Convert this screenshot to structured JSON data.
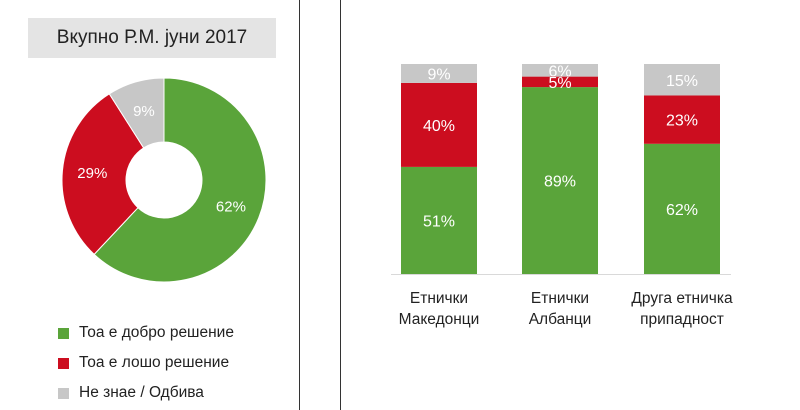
{
  "colors": {
    "good": "#5aa43a",
    "bad": "#cc0d1f",
    "unknown": "#c7c7c7"
  },
  "legend": [
    {
      "label": "Тоа е добро решение",
      "color": "#5aa43a"
    },
    {
      "label": "Тоа е лошо решение",
      "color": "#cc0d1f"
    },
    {
      "label": "Не знае / Одбива",
      "color": "#c7c7c7"
    }
  ],
  "chart_data": [
    {
      "type": "pie",
      "title": "Вкупно Р.М. јуни 2017",
      "slices": [
        {
          "label": "Тоа е добро решение",
          "value": 62,
          "display": "62%",
          "color": "#5aa43a"
        },
        {
          "label": "Тоа е лошо решение",
          "value": 29,
          "display": "29%",
          "color": "#cc0d1f"
        },
        {
          "label": "Не знае / Одбива",
          "value": 9,
          "display": "9%",
          "color": "#c7c7c7"
        }
      ]
    },
    {
      "type": "bar",
      "stacked": true,
      "categories": [
        "Етнички\nМакедонци",
        "Етнички\nАлбанци",
        "Друга етничка\nприпадност"
      ],
      "series": [
        {
          "name": "Тоа е добро решение",
          "color": "#5aa43a",
          "values": [
            51,
            89,
            62
          ],
          "display": [
            "51%",
            "89%",
            "62%"
          ]
        },
        {
          "name": "Тоа е лошо решение",
          "color": "#cc0d1f",
          "values": [
            40,
            5,
            23
          ],
          "display": [
            "40%",
            "5%",
            "23%"
          ]
        },
        {
          "name": "Не знае / Одбива",
          "color": "#c7c7c7",
          "values": [
            9,
            6,
            15
          ],
          "display": [
            "9%",
            "6%",
            "15%"
          ]
        }
      ],
      "ylim": [
        0,
        100
      ]
    }
  ]
}
